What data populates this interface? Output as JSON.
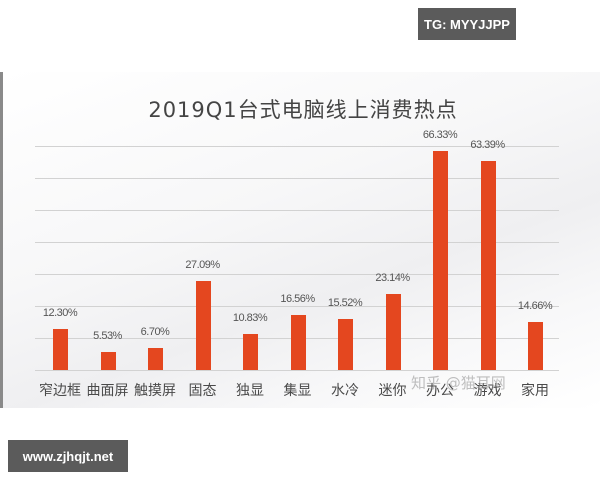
{
  "badges": {
    "top_right": "TG: MYYJJPP",
    "bottom_left": "www.zjhqjt.net"
  },
  "watermark": "知乎 @猫耳网",
  "colors": {
    "bar": "#e4471f",
    "badge_bg": "#5b5b5b",
    "gridline": "#d2d2d2"
  },
  "chart_data": {
    "type": "bar",
    "title": "2019Q1台式电脑线上消费热点",
    "xlabel": "",
    "ylabel": "",
    "ylim": [
      0,
      70
    ],
    "grid": true,
    "legend": null,
    "categories": [
      "窄边框",
      "曲面屏",
      "触摸屏",
      "固态",
      "独显",
      "集显",
      "水冷",
      "迷你",
      "办公",
      "游戏",
      "家用"
    ],
    "values": [
      12.3,
      5.53,
      6.7,
      27.09,
      10.83,
      16.56,
      15.52,
      23.14,
      66.33,
      63.39,
      14.66
    ],
    "value_labels": [
      "12.30%",
      "5.53%",
      "6.70%",
      "27.09%",
      "10.83%",
      "16.56%",
      "15.52%",
      "23.14%",
      "66.33%",
      "63.39%",
      "14.66%"
    ]
  }
}
